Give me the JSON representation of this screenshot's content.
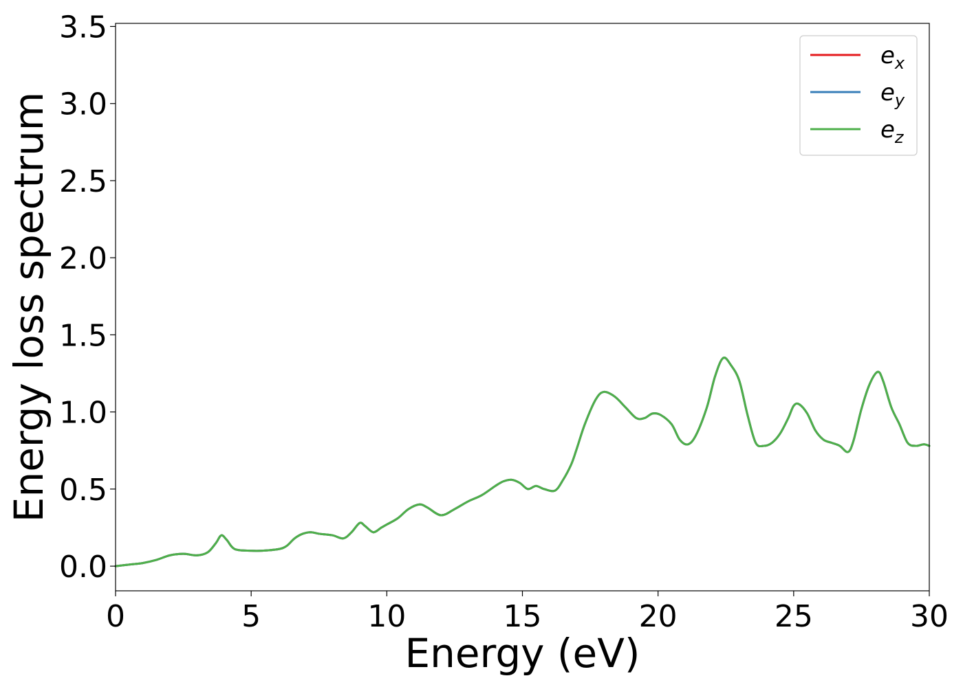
{
  "chart_data": {
    "type": "line",
    "title": "",
    "xlabel": "Energy (eV)",
    "ylabel": "Energy loss spectrum",
    "xlim": [
      0,
      30
    ],
    "ylim": [
      -0.16,
      3.52
    ],
    "xticks": [
      0,
      5,
      10,
      15,
      20,
      25,
      30
    ],
    "xtick_labels": [
      "0",
      "5",
      "10",
      "15",
      "20",
      "25",
      "30"
    ],
    "yticks": [
      0.0,
      0.5,
      1.0,
      1.5,
      2.0,
      2.5,
      3.0,
      3.5
    ],
    "ytick_labels": [
      "0.0",
      "0.5",
      "1.0",
      "1.5",
      "2.0",
      "2.5",
      "3.0",
      "3.5"
    ],
    "grid": false,
    "legend_position": "top-right",
    "x": [
      0,
      0.5,
      1.0,
      1.5,
      2.0,
      2.5,
      3.0,
      3.4,
      3.7,
      3.9,
      4.1,
      4.4,
      5.0,
      5.4,
      6.0,
      6.3,
      6.6,
      6.9,
      7.2,
      7.5,
      8.0,
      8.4,
      8.7,
      9.0,
      9.2,
      9.5,
      9.8,
      10.0,
      10.4,
      10.8,
      11.2,
      11.5,
      12.0,
      12.5,
      13.0,
      13.5,
      14.0,
      14.3,
      14.6,
      14.9,
      15.2,
      15.5,
      15.8,
      16.2,
      16.5,
      16.8,
      17.0,
      17.3,
      17.7,
      18.0,
      18.4,
      18.8,
      19.2,
      19.5,
      19.8,
      20.1,
      20.5,
      20.8,
      21.1,
      21.4,
      21.8,
      22.1,
      22.4,
      22.7,
      23.0,
      23.3,
      23.6,
      23.9,
      24.2,
      24.5,
      24.8,
      25.0,
      25.2,
      25.5,
      25.8,
      26.1,
      26.4,
      26.7,
      27.0,
      27.2,
      27.5,
      27.8,
      28.1,
      28.3,
      28.6,
      28.9,
      29.2,
      29.5,
      29.8,
      30.0
    ],
    "series": [
      {
        "name": "e_x",
        "color": "#e41a1c",
        "y": [
          0.0,
          0.01,
          0.02,
          0.04,
          0.07,
          0.08,
          0.07,
          0.09,
          0.15,
          0.2,
          0.17,
          0.11,
          0.1,
          0.1,
          0.11,
          0.13,
          0.18,
          0.21,
          0.22,
          0.21,
          0.2,
          0.18,
          0.22,
          0.28,
          0.26,
          0.22,
          0.25,
          0.27,
          0.31,
          0.37,
          0.4,
          0.38,
          0.33,
          0.37,
          0.42,
          0.46,
          0.52,
          0.55,
          0.56,
          0.54,
          0.5,
          0.52,
          0.5,
          0.49,
          0.56,
          0.66,
          0.76,
          0.92,
          1.08,
          1.13,
          1.1,
          1.03,
          0.96,
          0.96,
          0.99,
          0.98,
          0.92,
          0.82,
          0.79,
          0.85,
          1.03,
          1.23,
          1.35,
          1.3,
          1.2,
          0.98,
          0.8,
          0.78,
          0.8,
          0.86,
          0.96,
          1.04,
          1.05,
          0.99,
          0.88,
          0.82,
          0.8,
          0.78,
          0.74,
          0.81,
          1.02,
          1.18,
          1.26,
          1.2,
          1.03,
          0.92,
          0.8,
          0.78,
          0.79,
          0.78
        ]
      },
      {
        "name": "e_y",
        "color": "#377eb8",
        "y": [
          0.0,
          0.01,
          0.02,
          0.04,
          0.07,
          0.08,
          0.07,
          0.09,
          0.15,
          0.2,
          0.17,
          0.11,
          0.1,
          0.1,
          0.11,
          0.13,
          0.18,
          0.21,
          0.22,
          0.21,
          0.2,
          0.18,
          0.22,
          0.28,
          0.26,
          0.22,
          0.25,
          0.27,
          0.31,
          0.37,
          0.4,
          0.38,
          0.33,
          0.37,
          0.42,
          0.46,
          0.52,
          0.55,
          0.56,
          0.54,
          0.5,
          0.52,
          0.5,
          0.49,
          0.56,
          0.66,
          0.76,
          0.92,
          1.08,
          1.13,
          1.1,
          1.03,
          0.96,
          0.96,
          0.99,
          0.98,
          0.92,
          0.82,
          0.79,
          0.85,
          1.03,
          1.23,
          1.35,
          1.3,
          1.2,
          0.98,
          0.8,
          0.78,
          0.8,
          0.86,
          0.96,
          1.04,
          1.05,
          0.99,
          0.88,
          0.82,
          0.8,
          0.78,
          0.74,
          0.81,
          1.02,
          1.18,
          1.26,
          1.2,
          1.03,
          0.92,
          0.8,
          0.78,
          0.79,
          0.78
        ]
      },
      {
        "name": "e_z",
        "color": "#4daf4a",
        "y": [
          0.0,
          0.01,
          0.02,
          0.04,
          0.07,
          0.08,
          0.07,
          0.09,
          0.15,
          0.2,
          0.17,
          0.11,
          0.1,
          0.1,
          0.11,
          0.13,
          0.18,
          0.21,
          0.22,
          0.21,
          0.2,
          0.18,
          0.22,
          0.28,
          0.26,
          0.22,
          0.25,
          0.27,
          0.31,
          0.37,
          0.4,
          0.38,
          0.33,
          0.37,
          0.42,
          0.46,
          0.52,
          0.55,
          0.56,
          0.54,
          0.5,
          0.52,
          0.5,
          0.49,
          0.56,
          0.66,
          0.76,
          0.92,
          1.08,
          1.13,
          1.1,
          1.03,
          0.96,
          0.96,
          0.99,
          0.98,
          0.92,
          0.82,
          0.79,
          0.85,
          1.03,
          1.23,
          1.35,
          1.3,
          1.2,
          0.98,
          0.8,
          0.78,
          0.8,
          0.86,
          0.96,
          1.04,
          1.05,
          0.99,
          0.88,
          0.82,
          0.8,
          0.78,
          0.74,
          0.81,
          1.02,
          1.18,
          1.26,
          1.2,
          1.03,
          0.92,
          0.8,
          0.78,
          0.79,
          0.78
        ]
      }
    ],
    "legend": [
      {
        "base": "e",
        "sub": "x",
        "color": "#e41a1c"
      },
      {
        "base": "e",
        "sub": "y",
        "color": "#377eb8"
      },
      {
        "base": "e",
        "sub": "z",
        "color": "#4daf4a"
      }
    ]
  }
}
